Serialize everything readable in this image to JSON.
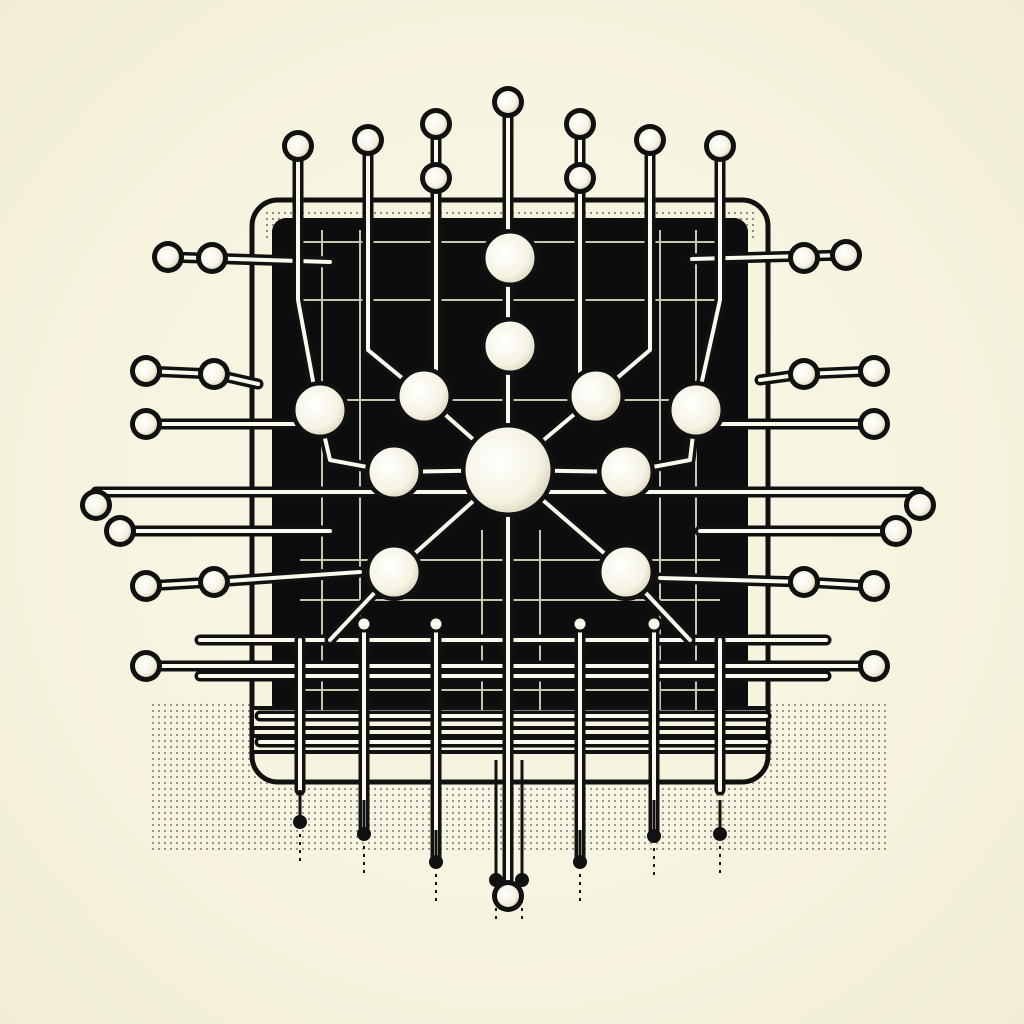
{
  "colors": {
    "background": "#f7f4e2",
    "ink": "#111111",
    "node_fill": "#fbf9ee",
    "panel_fill": "#0d0d0d"
  },
  "icon_names": [
    "circuit-board-icon",
    "network-hub-icon",
    "connector-node-icon"
  ]
}
